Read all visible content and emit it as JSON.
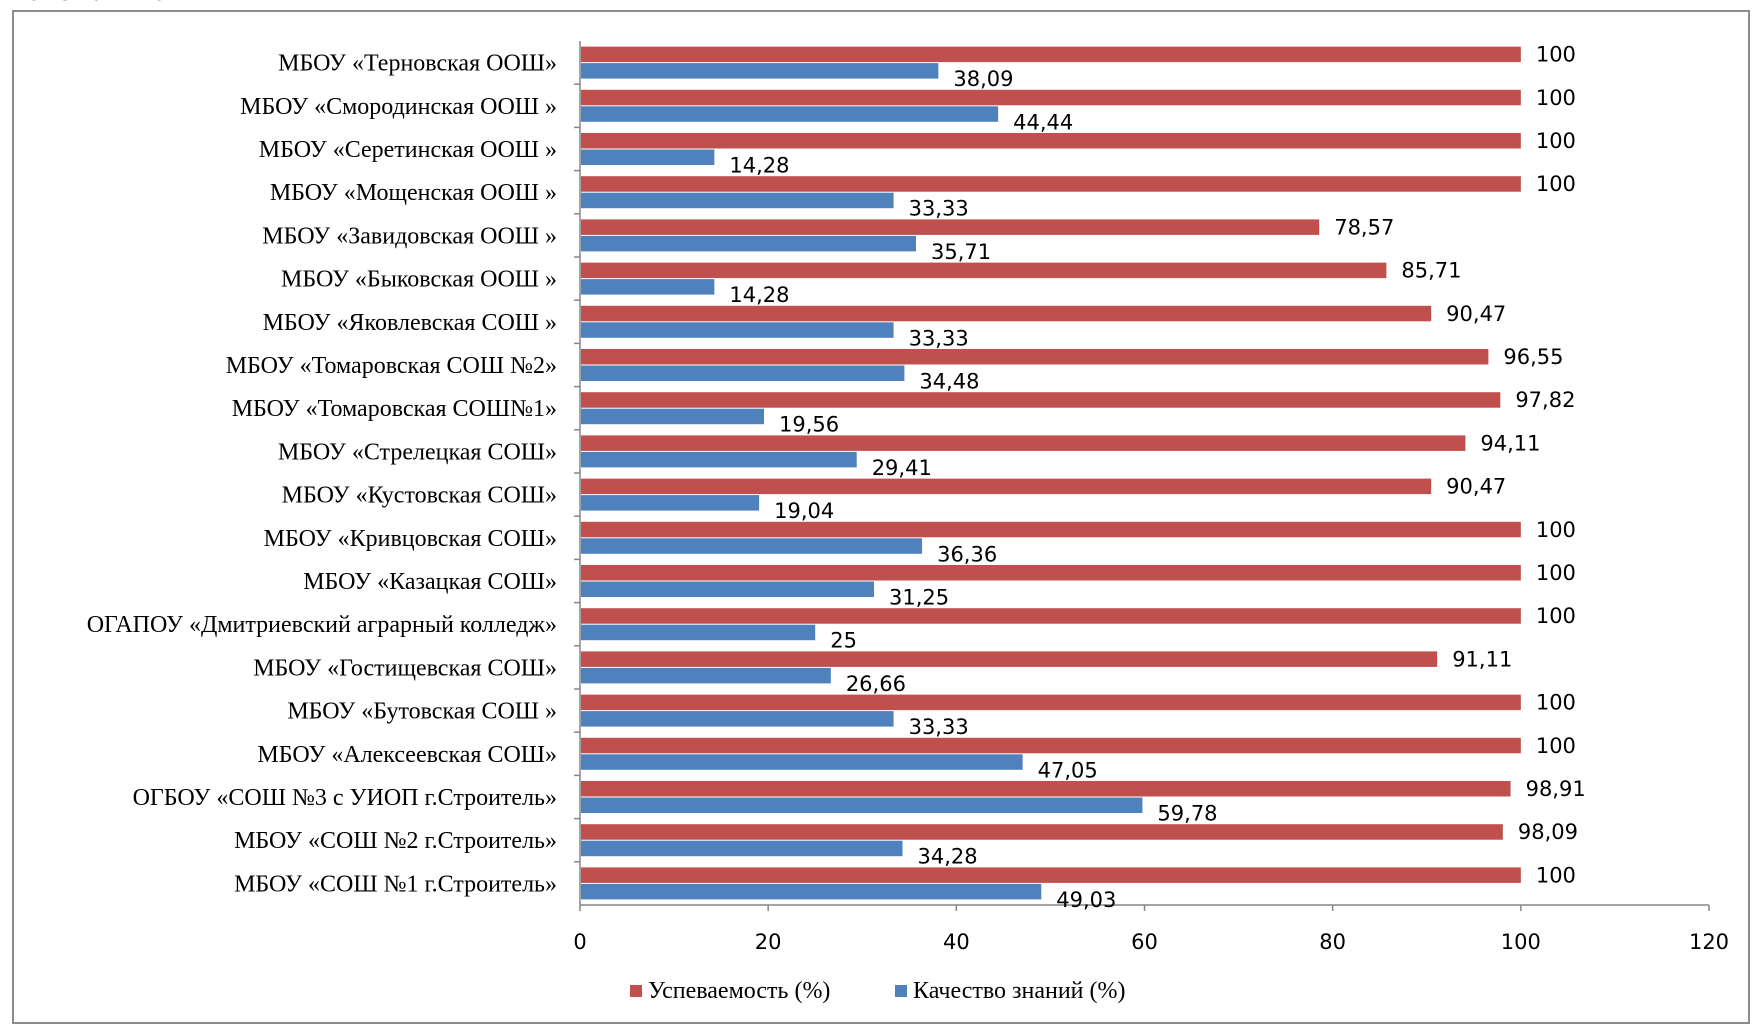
{
  "heading": "Математика",
  "colors": {
    "success": "#c0504d",
    "quality": "#4f81bd",
    "axis": "#868686"
  },
  "chart_data": {
    "type": "bar",
    "orientation": "horizontal",
    "categories": [
      "МБОУ «Терновская ООШ»",
      "МБОУ «Смородинская ООШ »",
      "МБОУ «Серетинская ООШ »",
      "МБОУ «Мощенская ООШ »",
      "МБОУ «Завидовская ООШ »",
      "МБОУ «Быковская ООШ »",
      "МБОУ «Яковлевская СОШ »",
      "МБОУ «Томаровская СОШ №2»",
      "МБОУ «Томаровская СОШ№1»",
      "МБОУ «Стрелецкая СОШ»",
      "МБОУ «Кустовская СОШ»",
      "МБОУ «Кривцовская СОШ»",
      "МБОУ «Казацкая СОШ»",
      "ОГАПОУ «Дмитриевский аграрный колледж»",
      "МБОУ «Гостищевская СОШ»",
      "МБОУ «Бутовская СОШ »",
      "МБОУ «Алексеевская СОШ»",
      "ОГБОУ «СОШ №3 с УИОП г.Строитель»",
      "МБОУ «СОШ №2 г.Строитель»",
      "МБОУ «СОШ №1 г.Строитель»"
    ],
    "series": [
      {
        "name": "Успеваемость (%)",
        "values": [
          100,
          100,
          100,
          100,
          78.57,
          85.71,
          90.47,
          96.55,
          97.82,
          94.11,
          90.47,
          100,
          100,
          100,
          91.11,
          100,
          100,
          98.91,
          98.09,
          100
        ],
        "labels": [
          "100",
          "100",
          "100",
          "100",
          "78,57",
          "85,71",
          "90,47",
          "96,55",
          "97,82",
          "94,11",
          "90,47",
          "100",
          "100",
          "100",
          "91,11",
          "100",
          "100",
          "98,91",
          "98,09",
          "100"
        ]
      },
      {
        "name": "Качество знаний (%)",
        "values": [
          38.09,
          44.44,
          14.28,
          33.33,
          35.71,
          14.28,
          33.33,
          34.48,
          19.56,
          29.41,
          19.04,
          36.36,
          31.25,
          25,
          26.66,
          33.33,
          47.05,
          59.78,
          34.28,
          49.03
        ],
        "labels": [
          "38,09",
          "44,44",
          "14,28",
          "33,33",
          "35,71",
          "14,28",
          "33,33",
          "34,48",
          "19,56",
          "29,41",
          "19,04",
          "36,36",
          "31,25",
          "25",
          "26,66",
          "33,33",
          "47,05",
          "59,78",
          "34,28",
          "49,03"
        ]
      }
    ],
    "xlim": [
      0,
      120
    ],
    "xticks": [
      "0",
      "20",
      "40",
      "60",
      "80",
      "100",
      "120"
    ],
    "grid": false,
    "legend": "bottom"
  }
}
